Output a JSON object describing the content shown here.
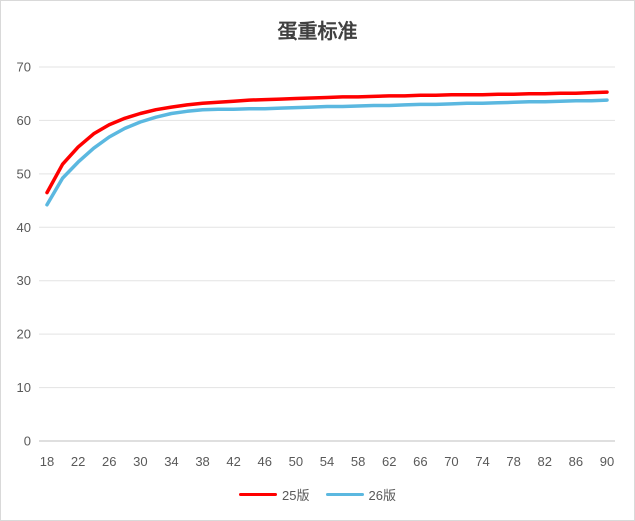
{
  "chart_data": {
    "type": "line",
    "title": "蛋重标准",
    "xlabel": "",
    "ylabel": "",
    "x_ticks": [
      "18",
      "22",
      "26",
      "30",
      "34",
      "38",
      "42",
      "46",
      "50",
      "54",
      "58",
      "62",
      "66",
      "70",
      "74",
      "78",
      "82",
      "86",
      "90"
    ],
    "ylim": [
      0,
      70
    ],
    "y_ticks": [
      0,
      10,
      20,
      30,
      40,
      50,
      60,
      70
    ],
    "grid": true,
    "legend_position": "bottom",
    "x": [
      18,
      20,
      22,
      24,
      26,
      28,
      30,
      32,
      34,
      36,
      38,
      40,
      42,
      44,
      46,
      48,
      50,
      52,
      54,
      56,
      58,
      60,
      62,
      64,
      66,
      68,
      70,
      72,
      74,
      76,
      78,
      80,
      82,
      84,
      86,
      88,
      90
    ],
    "series": [
      {
        "name": "25版",
        "color": "#ff0000",
        "values": [
          46.5,
          51.8,
          55.0,
          57.5,
          59.2,
          60.4,
          61.3,
          62.0,
          62.5,
          62.9,
          63.2,
          63.4,
          63.6,
          63.8,
          63.9,
          64.0,
          64.1,
          64.2,
          64.3,
          64.4,
          64.4,
          64.5,
          64.6,
          64.6,
          64.7,
          64.7,
          64.8,
          64.8,
          64.8,
          64.9,
          64.9,
          65.0,
          65.0,
          65.1,
          65.1,
          65.2,
          65.3
        ]
      },
      {
        "name": "26版",
        "color": "#5bb8e0",
        "values": [
          44.2,
          49.2,
          52.2,
          54.8,
          56.9,
          58.5,
          59.7,
          60.6,
          61.3,
          61.7,
          62.0,
          62.1,
          62.1,
          62.2,
          62.2,
          62.3,
          62.4,
          62.5,
          62.6,
          62.6,
          62.7,
          62.8,
          62.8,
          62.9,
          63.0,
          63.0,
          63.1,
          63.2,
          63.2,
          63.3,
          63.4,
          63.5,
          63.5,
          63.6,
          63.7,
          63.7,
          63.8
        ]
      }
    ]
  }
}
